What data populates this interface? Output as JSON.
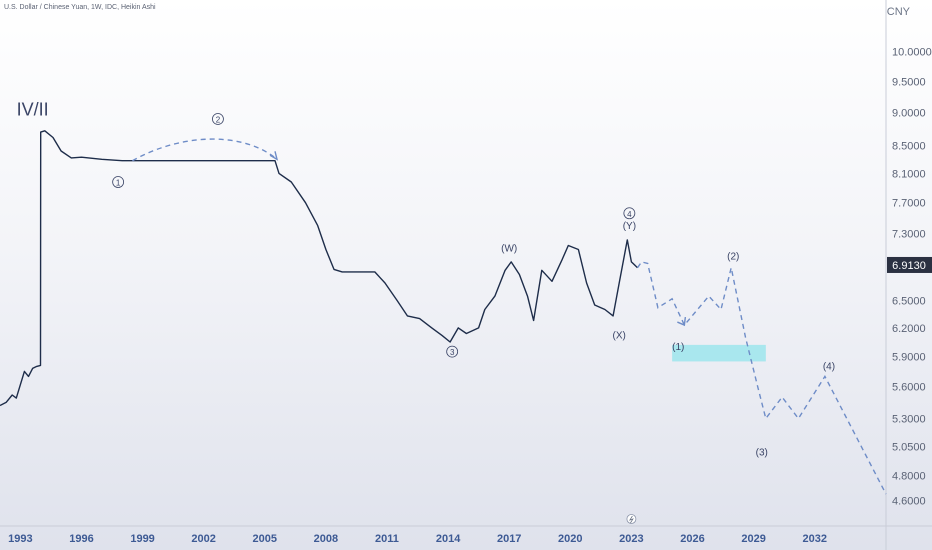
{
  "header": {
    "title": "U.S. Dollar / Chinese Yuan, 1W, IDC, Heikin Ashi"
  },
  "currency": "CNY",
  "colors": {
    "price_line": "#1e2d4a",
    "projection": "#6e8cc7",
    "target_zone": "#a9e7ee",
    "price_tag_bg": "#2b3142",
    "x_label": "#3d5a94"
  },
  "chart_data": {
    "type": "line",
    "y_scale": "log",
    "ylim": [
      4.4,
      10.6
    ],
    "xlim": [
      1992.0,
      2035.5
    ],
    "y_ticks": [
      "10.0000",
      "9.5000",
      "9.0000",
      "8.5000",
      "8.1000",
      "7.7000",
      "7.3000",
      "6.5000",
      "6.2000",
      "5.9000",
      "5.6000",
      "5.3000",
      "5.0500",
      "4.8000",
      "4.6000"
    ],
    "x_ticks": [
      "1993",
      "1996",
      "1999",
      "2002",
      "2005",
      "2008",
      "2011",
      "2014",
      "2017",
      "2020",
      "2023",
      "2026",
      "2029",
      "2032"
    ],
    "last_price": "6.9130",
    "series": [
      {
        "kind": "price",
        "points": [
          [
            1992.0,
            5.42
          ],
          [
            1992.3,
            5.45
          ],
          [
            1992.6,
            5.52
          ],
          [
            1992.8,
            5.49
          ],
          [
            1993.0,
            5.62
          ],
          [
            1993.2,
            5.75
          ],
          [
            1993.4,
            5.7
          ],
          [
            1993.6,
            5.78
          ],
          [
            1993.8,
            5.8
          ],
          [
            1993.99,
            5.81
          ],
          [
            1994.0,
            8.7
          ],
          [
            1994.2,
            8.72
          ],
          [
            1994.6,
            8.62
          ],
          [
            1995.0,
            8.42
          ],
          [
            1995.5,
            8.32
          ],
          [
            1996.0,
            8.33
          ],
          [
            1997.0,
            8.3
          ],
          [
            1998.0,
            8.28
          ],
          [
            2000.0,
            8.28
          ],
          [
            2003.0,
            8.28
          ],
          [
            2005.5,
            8.28
          ],
          [
            2005.7,
            8.1
          ],
          [
            2006.3,
            7.98
          ],
          [
            2007.0,
            7.7
          ],
          [
            2007.6,
            7.4
          ],
          [
            2008.0,
            7.1
          ],
          [
            2008.4,
            6.86
          ],
          [
            2008.8,
            6.83
          ],
          [
            2009.5,
            6.83
          ],
          [
            2010.4,
            6.83
          ],
          [
            2010.9,
            6.7
          ],
          [
            2011.5,
            6.5
          ],
          [
            2012.0,
            6.33
          ],
          [
            2012.6,
            6.3
          ],
          [
            2013.2,
            6.2
          ],
          [
            2013.7,
            6.12
          ],
          [
            2014.1,
            6.05
          ],
          [
            2014.5,
            6.2
          ],
          [
            2014.9,
            6.14
          ],
          [
            2015.5,
            6.2
          ],
          [
            2015.8,
            6.4
          ],
          [
            2016.3,
            6.55
          ],
          [
            2016.8,
            6.85
          ],
          [
            2017.1,
            6.95
          ],
          [
            2017.5,
            6.8
          ],
          [
            2017.9,
            6.55
          ],
          [
            2018.2,
            6.28
          ],
          [
            2018.6,
            6.85
          ],
          [
            2019.1,
            6.72
          ],
          [
            2019.6,
            6.98
          ],
          [
            2019.9,
            7.15
          ],
          [
            2020.4,
            7.1
          ],
          [
            2020.8,
            6.7
          ],
          [
            2021.2,
            6.45
          ],
          [
            2021.7,
            6.4
          ],
          [
            2022.1,
            6.33
          ],
          [
            2022.4,
            6.7
          ],
          [
            2022.8,
            7.22
          ],
          [
            2023.0,
            6.95
          ],
          [
            2023.3,
            6.88
          ]
        ]
      },
      {
        "kind": "projection",
        "points": [
          [
            2023.3,
            6.88
          ],
          [
            2023.5,
            6.95
          ],
          [
            2023.8,
            6.93
          ],
          [
            2024.3,
            6.42
          ],
          [
            2025.0,
            6.52
          ],
          [
            2025.6,
            6.23
          ],
          [
            2026.8,
            6.55
          ],
          [
            2027.4,
            6.4
          ],
          [
            2027.9,
            6.88
          ],
          [
            2028.6,
            6.1
          ],
          [
            2029.2,
            5.6
          ],
          [
            2029.6,
            5.3
          ],
          [
            2030.4,
            5.5
          ],
          [
            2031.2,
            5.3
          ],
          [
            2032.5,
            5.7
          ],
          [
            2035.5,
            4.65
          ]
        ]
      },
      {
        "kind": "arc",
        "points": [
          [
            1998.5,
            8.28
          ],
          [
            2001.0,
            8.7
          ],
          [
            2004.0,
            8.7
          ],
          [
            2005.6,
            8.3
          ]
        ]
      }
    ],
    "target_zone": {
      "x_from": 2025.0,
      "x_to": 2029.6,
      "y_from": 5.85,
      "y_to": 6.02
    },
    "annotations": [
      {
        "text": "IV/II",
        "x": 1993.6,
        "y": 9.05,
        "size": 18,
        "circled": false
      },
      {
        "text": "1",
        "x": 1997.8,
        "y": 7.98,
        "size": 10,
        "circled": true
      },
      {
        "text": "2",
        "x": 2002.7,
        "y": 8.9,
        "size": 10,
        "circled": true
      },
      {
        "text": "3",
        "x": 2014.2,
        "y": 5.95,
        "size": 10,
        "circled": true
      },
      {
        "text": "4",
        "x": 2022.9,
        "y": 7.56,
        "size": 10,
        "circled": true
      },
      {
        "text": "(Y)",
        "x": 2022.9,
        "y": 7.4,
        "size": 10,
        "circled": false
      },
      {
        "text": "(W)",
        "x": 2017.0,
        "y": 7.12,
        "size": 10,
        "circled": false
      },
      {
        "text": "(X)",
        "x": 2022.4,
        "y": 6.12,
        "size": 10,
        "circled": false
      },
      {
        "text": "(1)",
        "x": 2025.3,
        "y": 6.0,
        "size": 10,
        "circled": false
      },
      {
        "text": "(2)",
        "x": 2028.0,
        "y": 7.02,
        "size": 10,
        "circled": false
      },
      {
        "text": "(3)",
        "x": 2029.4,
        "y": 5.0,
        "size": 10,
        "circled": false
      },
      {
        "text": "(4)",
        "x": 2032.7,
        "y": 5.8,
        "size": 10,
        "circled": false
      }
    ]
  }
}
